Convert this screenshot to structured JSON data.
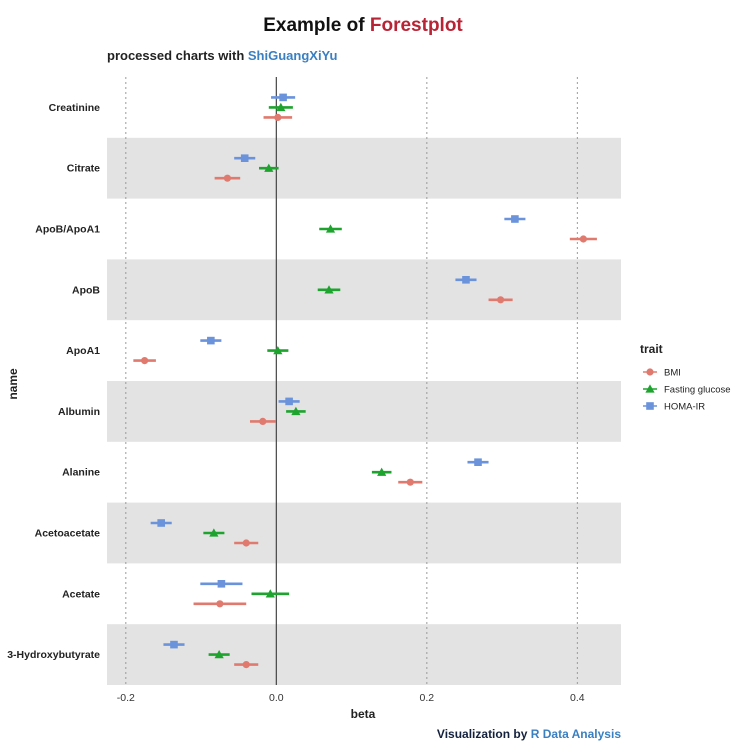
{
  "chart_data": {
    "type": "scatter",
    "title_prefix": "Example of ",
    "title_highlight": "Forestplot",
    "subtitle_prefix": "processed charts with ",
    "subtitle_highlight": "ShiGuangXiYu",
    "caption_prefix": "Visualization by ",
    "caption_highlight": "R Data Analysis",
    "xlabel": "beta",
    "ylabel": "name",
    "xlim": [
      -0.225,
      0.458
    ],
    "x_ticks": [
      -0.2,
      0.0,
      0.2,
      0.4
    ],
    "x_tick_labels": [
      "-0.2",
      "0.0",
      "0.2",
      "0.4"
    ],
    "categories": [
      "Creatinine",
      "Citrate",
      "ApoB/ApoA1",
      "ApoB",
      "ApoA1",
      "Albumin",
      "Alanine",
      "Acetoacetate",
      "Acetate",
      "3-Hydroxybutyrate"
    ],
    "legend_title": "trait",
    "legend_position": "right",
    "grid": "vertical-dotted",
    "reference_line": 0,
    "series": [
      {
        "name": "BMI",
        "color": "#e07a6f",
        "marker": "circle",
        "estimate": [
          0.002,
          -0.065,
          0.408,
          0.298,
          -0.175,
          -0.018,
          0.178,
          -0.04,
          -0.075,
          -0.04
        ],
        "lower": [
          -0.017,
          -0.082,
          0.39,
          0.282,
          -0.19,
          -0.035,
          0.162,
          -0.056,
          -0.11,
          -0.056
        ],
        "upper": [
          0.021,
          -0.048,
          0.426,
          0.314,
          -0.16,
          -0.001,
          0.194,
          -0.024,
          -0.04,
          -0.024
        ]
      },
      {
        "name": "Fasting glucose",
        "color": "#1ea32f",
        "marker": "triangle",
        "estimate": [
          0.006,
          -0.01,
          0.072,
          0.07,
          0.002,
          0.026,
          0.14,
          -0.083,
          -0.008,
          -0.076
        ],
        "lower": [
          -0.01,
          -0.023,
          0.057,
          0.055,
          -0.012,
          0.013,
          0.127,
          -0.097,
          -0.033,
          -0.09
        ],
        "upper": [
          0.022,
          0.003,
          0.087,
          0.085,
          0.016,
          0.039,
          0.153,
          -0.069,
          0.017,
          -0.062
        ]
      },
      {
        "name": "HOMA-IR",
        "color": "#6a93dc",
        "marker": "square",
        "estimate": [
          0.009,
          -0.042,
          0.317,
          0.252,
          -0.087,
          0.017,
          0.268,
          -0.153,
          -0.073,
          -0.136
        ],
        "lower": [
          -0.007,
          -0.056,
          0.303,
          0.238,
          -0.101,
          0.003,
          0.254,
          -0.167,
          -0.101,
          -0.15
        ],
        "upper": [
          0.025,
          -0.028,
          0.331,
          0.266,
          -0.073,
          0.031,
          0.282,
          -0.139,
          -0.045,
          -0.122
        ]
      }
    ]
  }
}
